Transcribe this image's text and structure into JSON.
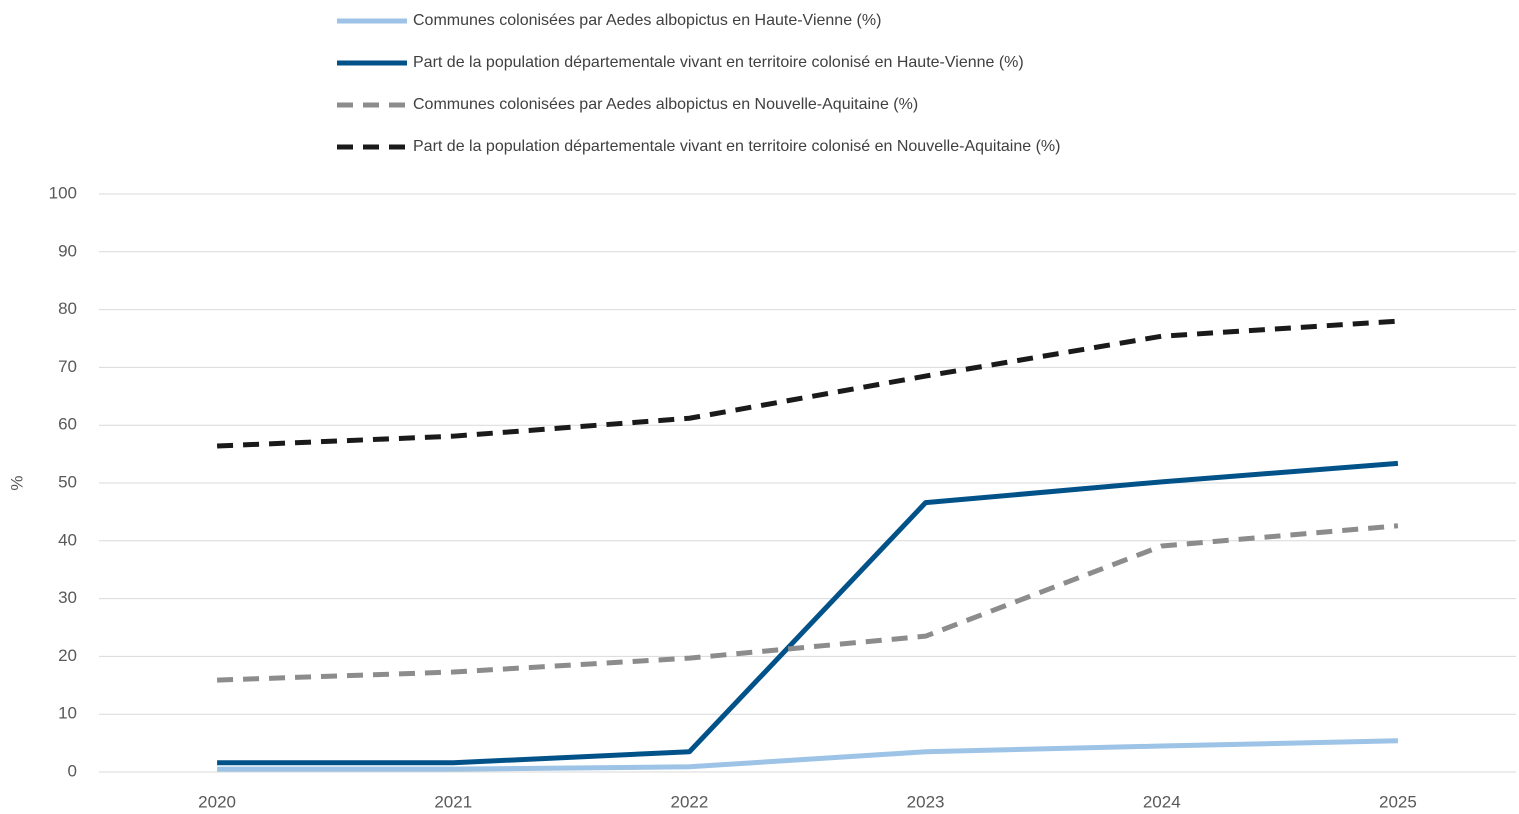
{
  "chart_data": {
    "type": "line",
    "y_label": "%",
    "categories": [
      "2020",
      "2021",
      "2022",
      "2023",
      "2024",
      "2025"
    ],
    "series": [
      {
        "name": "Communes colonisées par Aedes albopictus en Haute-Vienne (%)",
        "color": "#9dc3e6",
        "line_style": "solid",
        "values": [
          0.5,
          0.5,
          0.9,
          3.5,
          4.5,
          5.4
        ]
      },
      {
        "name": "Part de la population départementale vivant en territoire colonisé en Haute-Vienne (%)",
        "color": "#02528a",
        "line_style": "solid",
        "values": [
          1.6,
          1.6,
          3.5,
          46.6,
          50.2,
          53.4
        ]
      },
      {
        "name": "Communes colonisées par Aedes albopictus en Nouvelle-Aquitaine (%)",
        "color": "#8c8c8c",
        "line_style": "dashed",
        "values": [
          15.9,
          17.3,
          19.7,
          23.5,
          39.1,
          42.6
        ]
      },
      {
        "name": "Part de la population départementale vivant en territoire colonisé en Nouvelle-Aquitaine (%)",
        "color": "#1a1a1a",
        "line_style": "dashed",
        "values": [
          56.4,
          58.1,
          61.2,
          68.5,
          75.4,
          78.0
        ]
      }
    ],
    "ylim": [
      0,
      100
    ],
    "yticks": [
      0,
      10,
      20,
      30,
      40,
      50,
      60,
      70,
      80,
      90,
      100
    ],
    "grid": true,
    "legend": "top"
  }
}
